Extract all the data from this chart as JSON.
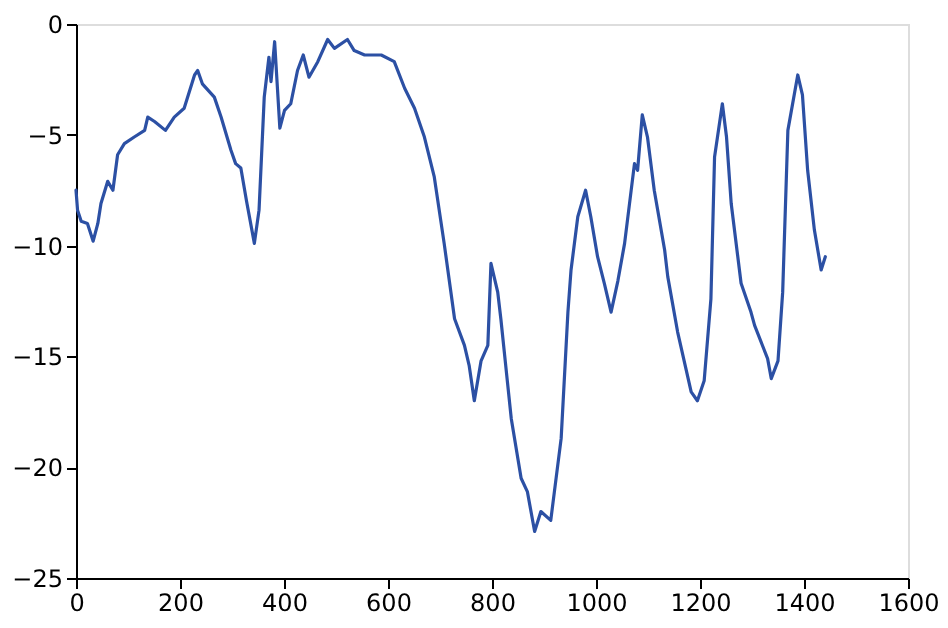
{
  "chart_data": {
    "type": "line",
    "xlim": [
      0,
      1600
    ],
    "ylim": [
      -25,
      0
    ],
    "xticks": [
      0,
      200,
      400,
      600,
      800,
      1000,
      1200,
      1400,
      1600
    ],
    "yticks": [
      -25,
      -20,
      -15,
      -10,
      -5,
      0
    ],
    "grid": false,
    "marker": "none",
    "line_style": "solid",
    "series": [
      {
        "color": "#2c50a4",
        "x": [
          0,
          3,
          10,
          22,
          33,
          42,
          48,
          61,
          71,
          80,
          93,
          112,
          132,
          138,
          151,
          172,
          189,
          208,
          228,
          234,
          243,
          266,
          279,
          298,
          307,
          317,
          328,
          343,
          352,
          362,
          371,
          375,
          382,
          392,
          401,
          413,
          426,
          437,
          448,
          465,
          484,
          497,
          522,
          535,
          555,
          587,
          612,
          632,
          651,
          670,
          689,
          708,
          728,
          747,
          756,
          766,
          779,
          792,
          798,
          811,
          817,
          837,
          856,
          868,
          882,
          894,
          913,
          920,
          933,
          946,
          952,
          965,
          980,
          990,
          1003,
          1016,
          1029,
          1042,
          1055,
          1074,
          1080,
          1089,
          1099,
          1112,
          1132,
          1138,
          1157,
          1183,
          1195,
          1208,
          1221,
          1228,
          1243,
          1251,
          1260,
          1279,
          1298,
          1305,
          1330,
          1337,
          1350,
          1359,
          1369,
          1388,
          1397,
          1407,
          1420,
          1433,
          1441
        ],
        "values": [
          -7.5,
          -8.4,
          -8.9,
          -9.0,
          -9.8,
          -9.0,
          -8.1,
          -7.1,
          -7.5,
          -5.9,
          -5.4,
          -5.1,
          -4.8,
          -4.2,
          -4.4,
          -4.8,
          -4.2,
          -3.8,
          -2.3,
          -2.1,
          -2.7,
          -3.3,
          -4.2,
          -5.7,
          -6.3,
          -6.5,
          -8.0,
          -9.9,
          -8.4,
          -3.3,
          -1.5,
          -2.6,
          -0.8,
          -4.7,
          -3.9,
          -3.6,
          -2.1,
          -1.4,
          -2.4,
          -1.7,
          -0.7,
          -1.1,
          -0.7,
          -1.2,
          -1.4,
          -1.4,
          -1.7,
          -2.9,
          -3.8,
          -5.1,
          -6.9,
          -9.9,
          -13.3,
          -14.5,
          -15.4,
          -17.0,
          -15.2,
          -14.5,
          -10.8,
          -12.1,
          -13.3,
          -17.8,
          -20.5,
          -21.1,
          -22.9,
          -22.0,
          -22.4,
          -21.1,
          -18.7,
          -13.0,
          -11.1,
          -8.7,
          -7.5,
          -8.7,
          -10.5,
          -11.7,
          -13.0,
          -11.6,
          -9.9,
          -6.3,
          -6.6,
          -4.1,
          -5.1,
          -7.5,
          -10.2,
          -11.4,
          -13.9,
          -16.6,
          -17.0,
          -16.1,
          -12.4,
          -6.0,
          -3.6,
          -5.1,
          -8.1,
          -11.7,
          -13.0,
          -13.6,
          -15.1,
          -16.0,
          -15.2,
          -12.1,
          -4.8,
          -2.3,
          -3.2,
          -6.6,
          -9.3,
          -11.1,
          -10.5
        ]
      }
    ]
  }
}
